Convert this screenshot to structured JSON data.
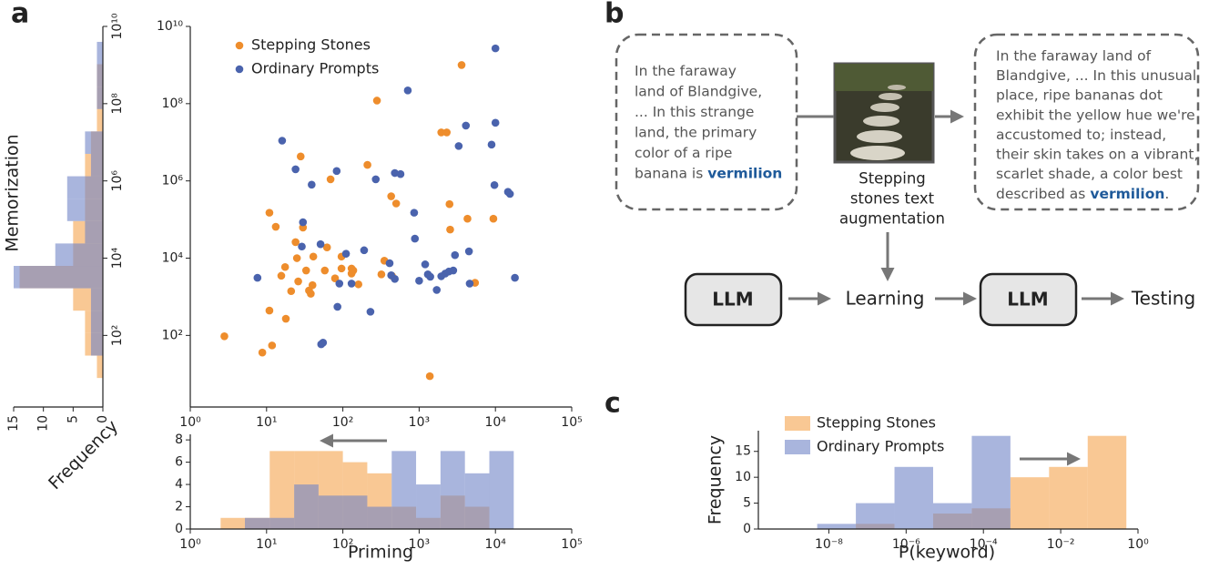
{
  "panel_labels": [
    "a",
    "b",
    "c"
  ],
  "chart_data": [
    {
      "type": "scatter",
      "xlog": true,
      "ylog": true,
      "xlim": [
        1,
        100000
      ],
      "ylim": [
        1.4,
        10000000000
      ],
      "xticks": [
        {
          "value": 1,
          "label": "10⁰"
        },
        {
          "value": 10,
          "label": "10¹"
        },
        {
          "value": 100,
          "label": "10²"
        },
        {
          "value": 1000,
          "label": "10³"
        },
        {
          "value": 10000,
          "label": "10⁴"
        },
        {
          "value": 100000,
          "label": "10⁵"
        }
      ],
      "yticks": [
        {
          "value": 100,
          "label": "10²"
        },
        {
          "value": 10000,
          "label": "10⁴"
        },
        {
          "value": 1000000,
          "label": "10⁶"
        },
        {
          "value": 100000000,
          "label": "10⁸"
        },
        {
          "value": 10000000000,
          "label": "10¹⁰"
        }
      ],
      "legend": "upper left",
      "series": [
        {
          "name": "Stepping Stones",
          "color": "#ee8d2c",
          "x": [
            2.8,
            8.8,
            11.8,
            1380,
            10.9,
            10.9,
            13.2,
            17.9,
            15.6,
            17.5,
            24,
            25,
            30,
            28,
            33,
            36,
            38,
            40,
            26,
            21,
            58,
            62,
            41,
            69,
            96,
            96,
            130,
            137,
            130,
            160,
            79,
            210,
            280,
            320,
            350,
            430,
            440,
            500,
            1950,
            2300,
            2500,
            2550,
            3600,
            4300,
            5400,
            9400
          ],
          "values": [
            95,
            36,
            55,
            8.8,
            440,
            150000,
            65000,
            270,
            3500,
            5900,
            26000,
            10000,
            62000,
            4300000,
            4800,
            1450,
            1200,
            2000,
            2500,
            1400,
            4800,
            19000,
            11000,
            1100000,
            11000,
            5400,
            5400,
            4800,
            4000,
            2100,
            3000,
            2600000,
            120000000,
            3800,
            8600,
            400000,
            3500,
            260000,
            18000000,
            18000000,
            250000,
            55000,
            1000000000,
            105000,
            2300,
            105000
          ]
        },
        {
          "name": "Ordinary Prompts",
          "color": "#4a63ad",
          "x": [
            16,
            7.6,
            24,
            30,
            29,
            39,
            51,
            52,
            55,
            83,
            85,
            90,
            110,
            130,
            190,
            230,
            270,
            480,
            570,
            410,
            430,
            480,
            710,
            860,
            880,
            1000,
            1200,
            1300,
            1400,
            1700,
            1950,
            2200,
            2450,
            2950,
            2800,
            3300,
            4100,
            4500,
            4600,
            8900,
            9700,
            10000,
            10000,
            14600,
            15500,
            18000
          ],
          "values": [
            11000000,
            3100,
            2000000,
            85000,
            20000,
            800000,
            23000,
            59,
            65,
            1800000,
            550,
            2200,
            13000,
            2200,
            16000,
            410,
            1100000,
            1600000,
            1500000,
            7400,
            3600,
            2900,
            220000000,
            150000,
            32000,
            2600,
            6900,
            3800,
            3300,
            1500,
            3400,
            4000,
            4500,
            12000,
            4800,
            8000000,
            27000000,
            15000,
            2200,
            8700000,
            780000,
            32000000,
            2700000000,
            520000,
            460000,
            3100
          ]
        }
      ]
    },
    {
      "type": "histogram",
      "orientation": "horizontal",
      "ylog": true,
      "ylim": [
        1.4,
        10000000000
      ],
      "xlim": [
        15,
        0
      ],
      "xticks": [
        15,
        10,
        5,
        0
      ],
      "yticks": [
        {
          "value": 100,
          "label": "10²"
        },
        {
          "value": 10000,
          "label": "10⁴"
        },
        {
          "value": 1000000,
          "label": "10⁶"
        },
        {
          "value": 100000000,
          "label": "10⁸"
        },
        {
          "value": 10000000000,
          "label": "10¹⁰"
        }
      ],
      "xlabel": "Frequency",
      "ylabel": "Memorization",
      "opacity": 0.6,
      "bins": [
        7.9,
        30,
        115,
        437,
        1660,
        6310,
        24000,
        91200,
        347000,
        1320000,
        5010000,
        19100000,
        72400000,
        275000000,
        1050000000,
        3980000000
      ],
      "series": [
        {
          "color": "#f5a34c",
          "values": [
            1,
            3,
            3,
            5,
            14,
            5,
            5,
            3,
            3,
            3,
            2,
            1,
            1,
            1,
            0
          ]
        },
        {
          "color": "#7083c6",
          "values": [
            0,
            2,
            2,
            2,
            15,
            8,
            3,
            6,
            6,
            2,
            3,
            0,
            1,
            1,
            1
          ]
        }
      ]
    },
    {
      "type": "histogram",
      "orientation": "vertical",
      "xlog": true,
      "xlim": [
        1,
        100000
      ],
      "ylim": [
        0,
        8.5
      ],
      "xticks": [
        {
          "value": 1,
          "label": "10⁰"
        },
        {
          "value": 10,
          "label": "10¹"
        },
        {
          "value": 100,
          "label": "10²"
        },
        {
          "value": 1000,
          "label": "10³"
        },
        {
          "value": 10000,
          "label": "10⁴"
        },
        {
          "value": 100000,
          "label": "10⁵"
        }
      ],
      "yticks": [
        0,
        2,
        4,
        6,
        8
      ],
      "xlabel": "Priming",
      "opacity": 0.6,
      "bins": [
        2.5,
        5.2,
        11,
        23,
        48,
        100,
        209,
        437,
        912,
        1905,
        3981,
        8318,
        17378
      ],
      "series": [
        {
          "color": "#f5a34c",
          "values": [
            1,
            1,
            7,
            7,
            7,
            6,
            5,
            2,
            1,
            3,
            2,
            0
          ]
        },
        {
          "color": "#7083c6",
          "values": [
            0,
            1,
            1,
            4,
            3,
            3,
            2,
            7,
            4,
            7,
            5,
            7
          ]
        }
      ]
    },
    {
      "type": "histogram",
      "orientation": "vertical",
      "xlog": true,
      "xlim": [
        1.5e-10,
        1
      ],
      "ylim": [
        0,
        19
      ],
      "xticks": [
        {
          "value": 1e-08,
          "label": "10⁻⁸"
        },
        {
          "value": 1e-06,
          "label": "10⁻⁶"
        },
        {
          "value": 0.0001,
          "label": "10⁻⁴"
        },
        {
          "value": 0.01,
          "label": "10⁻²"
        },
        {
          "value": 1,
          "label": "10⁰"
        }
      ],
      "yticks": [
        0,
        5,
        10,
        15
      ],
      "xlabel": "P(keyword)",
      "ylabel": "Frequency",
      "legend": "upper left",
      "opacity": 0.6,
      "bins": [
        5e-09,
        5e-08,
        5e-07,
        5e-06,
        5e-05,
        0.0005,
        0.005,
        0.05,
        0.5
      ],
      "series": [
        {
          "name": "Stepping Stones",
          "color": "#f5a34c",
          "values": [
            0,
            1,
            0,
            3,
            4,
            10,
            12,
            18
          ]
        },
        {
          "name": "Ordinary Prompts",
          "color": "#7083c6",
          "values": [
            1,
            5,
            12,
            5,
            18,
            0,
            0,
            0
          ]
        }
      ]
    }
  ],
  "diagram": {
    "input_lines": [
      "In the faraway",
      "land of Blandgive,",
      "... In this strange",
      "land, the primary",
      "color of a ripe",
      "banana is"
    ],
    "input_keyword": "vermilion",
    "image_caption": [
      "Stepping",
      "stones text",
      "augmentation"
    ],
    "output_lines": [
      "In the faraway land of",
      "Blandgive, ... In this unusual",
      "place, ripe bananas dot",
      "exhibit the yellow hue we're",
      "accustomed to; instead,",
      "their skin takes on a vibrant,",
      "scarlet shade, a color best"
    ],
    "output_prefix": "described as",
    "output_keyword": "vermilion",
    "output_suffix": ".",
    "nodes": [
      "LLM",
      "Learning",
      "LLM",
      "Testing"
    ]
  }
}
